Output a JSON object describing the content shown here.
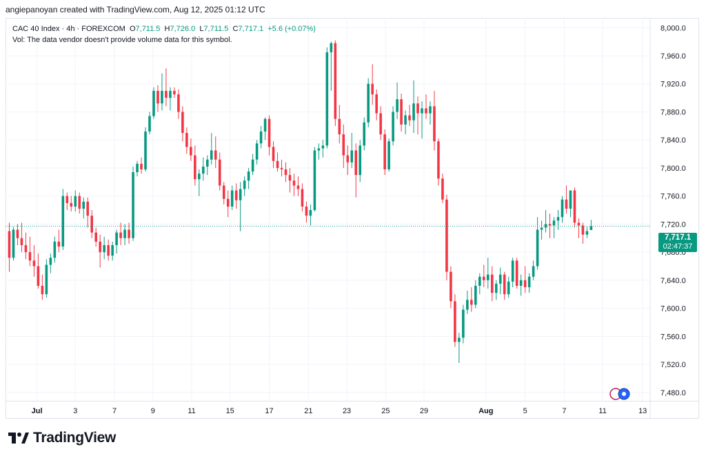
{
  "credit": "angiepanoyan created with TradingView.com, Aug 12, 2025 01:12 UTC",
  "legend": {
    "symbol": "CAC 40 Index · 4h · FOREXCOM",
    "open_label": "O",
    "open": "7,711.5",
    "high_label": "H",
    "high": "7,726.0",
    "low_label": "L",
    "low": "7,711.5",
    "close_label": "C",
    "close": "7,717.1",
    "change": "+5.6 (+0.07%)",
    "volume_note": "Vol: The data vendor doesn't provide volume data for this symbol."
  },
  "price_tag": {
    "price": "7,717.1",
    "countdown": "02:47:37"
  },
  "brand": {
    "name": "TradingView"
  },
  "colors": {
    "up": "#089981",
    "down": "#f23645",
    "grid": "#f0f3fa",
    "text": "#131722"
  },
  "chart_data": {
    "type": "candlestick",
    "y_ticks": [
      "8,000.0",
      "7,960.0",
      "7,920.0",
      "7,880.0",
      "7,840.0",
      "7,800.0",
      "7,760.0",
      "7,720.0",
      "7,680.0",
      "7,640.0",
      "7,600.0",
      "7,560.0",
      "7,520.0",
      "7,480.0"
    ],
    "x_ticks": [
      "Jul",
      "3",
      "7",
      "9",
      "11",
      "15",
      "17",
      "21",
      "23",
      "25",
      "29",
      "Aug",
      "5",
      "7",
      "11",
      "13"
    ],
    "ylim": [
      7468,
      8014
    ],
    "last_price": 7717.1,
    "candles": [
      {
        "o": 7710,
        "h": 7722,
        "l": 7652,
        "c": 7672
      },
      {
        "o": 7672,
        "h": 7716,
        "l": 7668,
        "c": 7712
      },
      {
        "o": 7712,
        "h": 7720,
        "l": 7690,
        "c": 7700
      },
      {
        "o": 7700,
        "h": 7722,
        "l": 7680,
        "c": 7690
      },
      {
        "o": 7690,
        "h": 7708,
        "l": 7670,
        "c": 7680
      },
      {
        "o": 7680,
        "h": 7702,
        "l": 7660,
        "c": 7668
      },
      {
        "o": 7668,
        "h": 7690,
        "l": 7645,
        "c": 7660
      },
      {
        "o": 7660,
        "h": 7678,
        "l": 7628,
        "c": 7632
      },
      {
        "o": 7632,
        "h": 7648,
        "l": 7612,
        "c": 7620
      },
      {
        "o": 7620,
        "h": 7670,
        "l": 7615,
        "c": 7662
      },
      {
        "o": 7662,
        "h": 7678,
        "l": 7650,
        "c": 7672
      },
      {
        "o": 7672,
        "h": 7702,
        "l": 7665,
        "c": 7695
      },
      {
        "o": 7695,
        "h": 7712,
        "l": 7680,
        "c": 7688
      },
      {
        "o": 7688,
        "h": 7770,
        "l": 7683,
        "c": 7760
      },
      {
        "o": 7760,
        "h": 7765,
        "l": 7740,
        "c": 7750
      },
      {
        "o": 7750,
        "h": 7760,
        "l": 7738,
        "c": 7745
      },
      {
        "o": 7745,
        "h": 7768,
        "l": 7738,
        "c": 7760
      },
      {
        "o": 7760,
        "h": 7765,
        "l": 7735,
        "c": 7742
      },
      {
        "o": 7742,
        "h": 7758,
        "l": 7728,
        "c": 7752
      },
      {
        "o": 7752,
        "h": 7758,
        "l": 7715,
        "c": 7732
      },
      {
        "o": 7732,
        "h": 7740,
        "l": 7700,
        "c": 7708
      },
      {
        "o": 7708,
        "h": 7715,
        "l": 7688,
        "c": 7695
      },
      {
        "o": 7695,
        "h": 7705,
        "l": 7658,
        "c": 7680
      },
      {
        "o": 7680,
        "h": 7702,
        "l": 7670,
        "c": 7690
      },
      {
        "o": 7690,
        "h": 7698,
        "l": 7668,
        "c": 7675
      },
      {
        "o": 7675,
        "h": 7695,
        "l": 7668,
        "c": 7690
      },
      {
        "o": 7690,
        "h": 7712,
        "l": 7678,
        "c": 7708
      },
      {
        "o": 7708,
        "h": 7722,
        "l": 7690,
        "c": 7700
      },
      {
        "o": 7700,
        "h": 7720,
        "l": 7690,
        "c": 7712
      },
      {
        "o": 7712,
        "h": 7722,
        "l": 7692,
        "c": 7700
      },
      {
        "o": 7700,
        "h": 7802,
        "l": 7696,
        "c": 7794
      },
      {
        "o": 7794,
        "h": 7810,
        "l": 7788,
        "c": 7806
      },
      {
        "o": 7806,
        "h": 7815,
        "l": 7792,
        "c": 7798
      },
      {
        "o": 7798,
        "h": 7858,
        "l": 7795,
        "c": 7852
      },
      {
        "o": 7852,
        "h": 7880,
        "l": 7848,
        "c": 7874
      },
      {
        "o": 7874,
        "h": 7915,
        "l": 7870,
        "c": 7910
      },
      {
        "o": 7910,
        "h": 7918,
        "l": 7880,
        "c": 7892
      },
      {
        "o": 7892,
        "h": 7935,
        "l": 7882,
        "c": 7910
      },
      {
        "o": 7910,
        "h": 7942,
        "l": 7888,
        "c": 7900
      },
      {
        "o": 7900,
        "h": 7915,
        "l": 7882,
        "c": 7910
      },
      {
        "o": 7910,
        "h": 7915,
        "l": 7900,
        "c": 7905
      },
      {
        "o": 7905,
        "h": 7912,
        "l": 7870,
        "c": 7880
      },
      {
        "o": 7880,
        "h": 7888,
        "l": 7838,
        "c": 7850
      },
      {
        "o": 7850,
        "h": 7858,
        "l": 7820,
        "c": 7830
      },
      {
        "o": 7830,
        "h": 7842,
        "l": 7810,
        "c": 7818
      },
      {
        "o": 7818,
        "h": 7832,
        "l": 7775,
        "c": 7784
      },
      {
        "o": 7784,
        "h": 7798,
        "l": 7760,
        "c": 7792
      },
      {
        "o": 7792,
        "h": 7815,
        "l": 7782,
        "c": 7802
      },
      {
        "o": 7802,
        "h": 7818,
        "l": 7790,
        "c": 7812
      },
      {
        "o": 7812,
        "h": 7850,
        "l": 7805,
        "c": 7825
      },
      {
        "o": 7825,
        "h": 7845,
        "l": 7800,
        "c": 7812
      },
      {
        "o": 7812,
        "h": 7822,
        "l": 7768,
        "c": 7775
      },
      {
        "o": 7775,
        "h": 7780,
        "l": 7748,
        "c": 7756
      },
      {
        "o": 7756,
        "h": 7768,
        "l": 7730,
        "c": 7745
      },
      {
        "o": 7745,
        "h": 7775,
        "l": 7740,
        "c": 7768
      },
      {
        "o": 7768,
        "h": 7778,
        "l": 7742,
        "c": 7754
      },
      {
        "o": 7754,
        "h": 7780,
        "l": 7710,
        "c": 7770
      },
      {
        "o": 7770,
        "h": 7788,
        "l": 7760,
        "c": 7782
      },
      {
        "o": 7782,
        "h": 7800,
        "l": 7770,
        "c": 7795
      },
      {
        "o": 7795,
        "h": 7820,
        "l": 7790,
        "c": 7812
      },
      {
        "o": 7812,
        "h": 7840,
        "l": 7805,
        "c": 7835
      },
      {
        "o": 7835,
        "h": 7860,
        "l": 7828,
        "c": 7852
      },
      {
        "o": 7852,
        "h": 7872,
        "l": 7840,
        "c": 7870
      },
      {
        "o": 7870,
        "h": 7875,
        "l": 7818,
        "c": 7830
      },
      {
        "o": 7830,
        "h": 7838,
        "l": 7800,
        "c": 7810
      },
      {
        "o": 7810,
        "h": 7822,
        "l": 7795,
        "c": 7800
      },
      {
        "o": 7800,
        "h": 7812,
        "l": 7788,
        "c": 7798
      },
      {
        "o": 7798,
        "h": 7808,
        "l": 7780,
        "c": 7790
      },
      {
        "o": 7790,
        "h": 7800,
        "l": 7765,
        "c": 7782
      },
      {
        "o": 7782,
        "h": 7792,
        "l": 7760,
        "c": 7775
      },
      {
        "o": 7775,
        "h": 7788,
        "l": 7760,
        "c": 7770
      },
      {
        "o": 7770,
        "h": 7778,
        "l": 7738,
        "c": 7745
      },
      {
        "o": 7745,
        "h": 7752,
        "l": 7722,
        "c": 7732
      },
      {
        "o": 7732,
        "h": 7748,
        "l": 7718,
        "c": 7740
      },
      {
        "o": 7740,
        "h": 7830,
        "l": 7738,
        "c": 7825
      },
      {
        "o": 7825,
        "h": 7835,
        "l": 7812,
        "c": 7828
      },
      {
        "o": 7828,
        "h": 7840,
        "l": 7815,
        "c": 7832
      },
      {
        "o": 7832,
        "h": 7972,
        "l": 7828,
        "c": 7965
      },
      {
        "o": 7965,
        "h": 7980,
        "l": 7910,
        "c": 7978
      },
      {
        "o": 7978,
        "h": 7982,
        "l": 7860,
        "c": 7870
      },
      {
        "o": 7870,
        "h": 7890,
        "l": 7835,
        "c": 7848
      },
      {
        "o": 7848,
        "h": 7862,
        "l": 7800,
        "c": 7818
      },
      {
        "o": 7818,
        "h": 7832,
        "l": 7790,
        "c": 7808
      },
      {
        "o": 7808,
        "h": 7850,
        "l": 7800,
        "c": 7825
      },
      {
        "o": 7825,
        "h": 7835,
        "l": 7758,
        "c": 7790
      },
      {
        "o": 7790,
        "h": 7840,
        "l": 7780,
        "c": 7832
      },
      {
        "o": 7832,
        "h": 7872,
        "l": 7825,
        "c": 7865
      },
      {
        "o": 7865,
        "h": 7928,
        "l": 7858,
        "c": 7920
      },
      {
        "o": 7920,
        "h": 7948,
        "l": 7890,
        "c": 7905
      },
      {
        "o": 7905,
        "h": 7912,
        "l": 7868,
        "c": 7878
      },
      {
        "o": 7878,
        "h": 7888,
        "l": 7840,
        "c": 7848
      },
      {
        "o": 7848,
        "h": 7855,
        "l": 7790,
        "c": 7798
      },
      {
        "o": 7798,
        "h": 7842,
        "l": 7795,
        "c": 7838
      },
      {
        "o": 7838,
        "h": 7888,
        "l": 7832,
        "c": 7880
      },
      {
        "o": 7880,
        "h": 7922,
        "l": 7870,
        "c": 7898
      },
      {
        "o": 7898,
        "h": 7906,
        "l": 7852,
        "c": 7862
      },
      {
        "o": 7862,
        "h": 7882,
        "l": 7848,
        "c": 7875
      },
      {
        "o": 7875,
        "h": 7890,
        "l": 7860,
        "c": 7868
      },
      {
        "o": 7868,
        "h": 7925,
        "l": 7850,
        "c": 7892
      },
      {
        "o": 7892,
        "h": 7902,
        "l": 7848,
        "c": 7878
      },
      {
        "o": 7878,
        "h": 7895,
        "l": 7842,
        "c": 7885
      },
      {
        "o": 7885,
        "h": 7905,
        "l": 7870,
        "c": 7878
      },
      {
        "o": 7878,
        "h": 7895,
        "l": 7862,
        "c": 7888
      },
      {
        "o": 7888,
        "h": 7910,
        "l": 7825,
        "c": 7838
      },
      {
        "o": 7838,
        "h": 7842,
        "l": 7775,
        "c": 7785
      },
      {
        "o": 7785,
        "h": 7792,
        "l": 7750,
        "c": 7755
      },
      {
        "o": 7755,
        "h": 7762,
        "l": 7640,
        "c": 7652
      },
      {
        "o": 7652,
        "h": 7660,
        "l": 7600,
        "c": 7610
      },
      {
        "o": 7610,
        "h": 7620,
        "l": 7545,
        "c": 7552
      },
      {
        "o": 7552,
        "h": 7565,
        "l": 7522,
        "c": 7558
      },
      {
        "o": 7558,
        "h": 7605,
        "l": 7550,
        "c": 7598
      },
      {
        "o": 7598,
        "h": 7625,
        "l": 7592,
        "c": 7612
      },
      {
        "o": 7612,
        "h": 7630,
        "l": 7595,
        "c": 7605
      },
      {
        "o": 7605,
        "h": 7640,
        "l": 7600,
        "c": 7632
      },
      {
        "o": 7632,
        "h": 7650,
        "l": 7620,
        "c": 7645
      },
      {
        "o": 7645,
        "h": 7662,
        "l": 7630,
        "c": 7640
      },
      {
        "o": 7640,
        "h": 7672,
        "l": 7628,
        "c": 7648
      },
      {
        "o": 7648,
        "h": 7660,
        "l": 7610,
        "c": 7622
      },
      {
        "o": 7622,
        "h": 7640,
        "l": 7612,
        "c": 7635
      },
      {
        "o": 7635,
        "h": 7658,
        "l": 7620,
        "c": 7648
      },
      {
        "o": 7648,
        "h": 7652,
        "l": 7612,
        "c": 7620
      },
      {
        "o": 7620,
        "h": 7645,
        "l": 7615,
        "c": 7638
      },
      {
        "o": 7638,
        "h": 7672,
        "l": 7630,
        "c": 7668
      },
      {
        "o": 7668,
        "h": 7672,
        "l": 7628,
        "c": 7632
      },
      {
        "o": 7632,
        "h": 7648,
        "l": 7618,
        "c": 7640
      },
      {
        "o": 7640,
        "h": 7660,
        "l": 7622,
        "c": 7630
      },
      {
        "o": 7630,
        "h": 7650,
        "l": 7622,
        "c": 7645
      },
      {
        "o": 7645,
        "h": 7668,
        "l": 7640,
        "c": 7660
      },
      {
        "o": 7660,
        "h": 7730,
        "l": 7655,
        "c": 7712
      },
      {
        "o": 7712,
        "h": 7725,
        "l": 7698,
        "c": 7715
      },
      {
        "o": 7715,
        "h": 7740,
        "l": 7708,
        "c": 7720
      },
      {
        "o": 7720,
        "h": 7735,
        "l": 7700,
        "c": 7718
      },
      {
        "o": 7718,
        "h": 7730,
        "l": 7700,
        "c": 7725
      },
      {
        "o": 7725,
        "h": 7740,
        "l": 7712,
        "c": 7730
      },
      {
        "o": 7730,
        "h": 7760,
        "l": 7722,
        "c": 7755
      },
      {
        "o": 7755,
        "h": 7775,
        "l": 7735,
        "c": 7742
      },
      {
        "o": 7742,
        "h": 7765,
        "l": 7730,
        "c": 7768
      },
      {
        "o": 7768,
        "h": 7772,
        "l": 7715,
        "c": 7722
      },
      {
        "o": 7722,
        "h": 7728,
        "l": 7700,
        "c": 7718
      },
      {
        "o": 7718,
        "h": 7722,
        "l": 7692,
        "c": 7705
      },
      {
        "o": 7705,
        "h": 7716,
        "l": 7700,
        "c": 7710
      },
      {
        "o": 7711.5,
        "h": 7726,
        "l": 7711.5,
        "c": 7717.1
      }
    ]
  }
}
